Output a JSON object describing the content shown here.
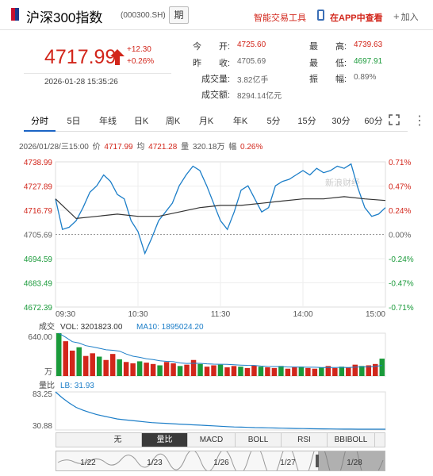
{
  "header": {
    "title": "沪深300指数",
    "code": "(000300.SH)",
    "period_button": "期",
    "smart_tool": "智能交易工具",
    "app_view": "在APP中查看",
    "add": "加入"
  },
  "quote": {
    "price": "4717.99",
    "change": "+12.30",
    "change_pct": "+0.26%",
    "datetime": "2026-01-28 15:35:26",
    "fields": {
      "open_label": "今　　开:",
      "open": "4725.60",
      "prev_label": "昨　　收:",
      "prev": "4705.69",
      "high_label": "最　　高:",
      "high": "4739.63",
      "low_label": "最　　低:",
      "low": "4697.91",
      "volume_label": "成交量:",
      "volume": "3.82亿手",
      "amount_label": "成交额:",
      "amount": "8294.14亿元",
      "amplitude_label": "振　　幅:",
      "amplitude": "0.89%"
    }
  },
  "tabs": [
    "分时",
    "5日",
    "年线",
    "日K",
    "周K",
    "月K",
    "年K",
    "5分",
    "15分",
    "30分",
    "60分"
  ],
  "active_tab": 0,
  "info_line": {
    "date": "2026/01/28/三15:00",
    "price_label": "价",
    "price": "4717.99",
    "avg_label": "均",
    "avg": "4721.28",
    "vol_label": "量",
    "vol": "320.18万",
    "amp_label": "幅",
    "amp": "0.26%"
  },
  "colors": {
    "up": "#d2261b",
    "down": "#1a9a3a",
    "price_line": "#1c7ec8",
    "avg_line": "#333333",
    "accent": "#1b64c5"
  },
  "chart_data": {
    "type": "line",
    "watermark": "新浪财经",
    "y_left_ticks": [
      "4738.99",
      "4727.89",
      "4716.79",
      "4705.69",
      "4694.59",
      "4683.49",
      "4672.39"
    ],
    "y_right_ticks": [
      "0.71%",
      "0.47%",
      "0.24%",
      "0.00%",
      "-0.24%",
      "-0.47%",
      "-0.71%"
    ],
    "x_ticks": [
      "09:30",
      "10:30",
      "11:30",
      "14:00",
      "15:00"
    ],
    "ylim": [
      4672.39,
      4738.99
    ],
    "prev_close": 4705.69,
    "series": [
      {
        "x": [
          "09:30",
          "09:35",
          "09:40",
          "09:45",
          "09:50",
          "09:55",
          "10:00",
          "10:05",
          "10:10",
          "10:15",
          "10:20",
          "10:25",
          "10:30",
          "10:35",
          "10:40",
          "10:45",
          "10:50",
          "10:55",
          "11:00",
          "11:05",
          "11:10",
          "11:15",
          "11:20",
          "11:25",
          "11:30",
          "13:05",
          "13:10",
          "13:15",
          "13:20",
          "13:25",
          "13:30",
          "13:35",
          "13:40",
          "13:45",
          "13:50",
          "13:55",
          "14:00",
          "14:05",
          "14:10",
          "14:15",
          "14:20",
          "14:25",
          "14:30",
          "14:35",
          "14:40",
          "14:45",
          "14:50",
          "14:55",
          "15:00"
        ],
        "values": [
          4722,
          4708,
          4709,
          4712,
          4718,
          4725,
          4728,
          4733,
          4730,
          4724,
          4722,
          4712,
          4707,
          4697,
          4704,
          4712,
          4716,
          4720,
          4728,
          4733,
          4737,
          4735,
          4728,
          4720,
          4712,
          4708,
          4716,
          4726,
          4728,
          4722,
          4716,
          4718,
          4728,
          4730,
          4731,
          4733,
          4735,
          4733,
          4736,
          4734,
          4735,
          4737,
          4736,
          4738,
          4727,
          4718,
          4714,
          4715,
          4717.99
        ]
      },
      {
        "x": [
          "09:30",
          "09:45",
          "10:00",
          "10:15",
          "10:30",
          "10:45",
          "11:00",
          "11:15",
          "11:30",
          "13:15",
          "13:30",
          "13:45",
          "14:00",
          "14:15",
          "14:30",
          "14:45",
          "15:00"
        ],
        "values": [
          4722,
          4713,
          4714,
          4715,
          4714,
          4714,
          4716,
          4718,
          4719,
          4719,
          4720,
          4721,
          4722,
          4722,
          4723,
          4722,
          4721.28
        ]
      }
    ],
    "volume": {
      "label": "成交",
      "vol_label": "VOL:",
      "vol": "3201823.00",
      "ma_label": "MA10:",
      "ma": "1895024.20",
      "y_top": "640.00",
      "unit": "万",
      "values": [
        640,
        520,
        380,
        430,
        300,
        340,
        290,
        240,
        330,
        250,
        210,
        190,
        220,
        200,
        180,
        160,
        210,
        190,
        150,
        170,
        240,
        180,
        140,
        160,
        170,
        130,
        150,
        140,
        120,
        160,
        140,
        130,
        120,
        150,
        110,
        130,
        140,
        120,
        110,
        130,
        150,
        120,
        140,
        130,
        170,
        150,
        160,
        180,
        260
      ]
    },
    "lb": {
      "label": "量比",
      "lb_label": "LB:",
      "lb": "31.93",
      "y_top": "83.25",
      "y_bottom": "30.88",
      "values": [
        83.25,
        75,
        68,
        62,
        58,
        55,
        52,
        50,
        48,
        46,
        45,
        44,
        43,
        42,
        41,
        40.5,
        40,
        39.5,
        39,
        38.5,
        38,
        37.5,
        37,
        36.5,
        36,
        35.5,
        35,
        34.8,
        34.5,
        34.2,
        34,
        33.8,
        33.6,
        33.4,
        33.2,
        33,
        32.8,
        32.6,
        32.5,
        32.4,
        32.3,
        32.2,
        32.1,
        32.05,
        32,
        31.98,
        31.96,
        31.94,
        31.93
      ]
    }
  },
  "indicators": [
    "无",
    "量比",
    "MACD",
    "BOLL",
    "RSI",
    "BBIBOLL"
  ],
  "active_indicator": 1,
  "navigator": {
    "dates": [
      "1/22",
      "1/23",
      "1/26",
      "1/27",
      "1/28"
    ]
  }
}
